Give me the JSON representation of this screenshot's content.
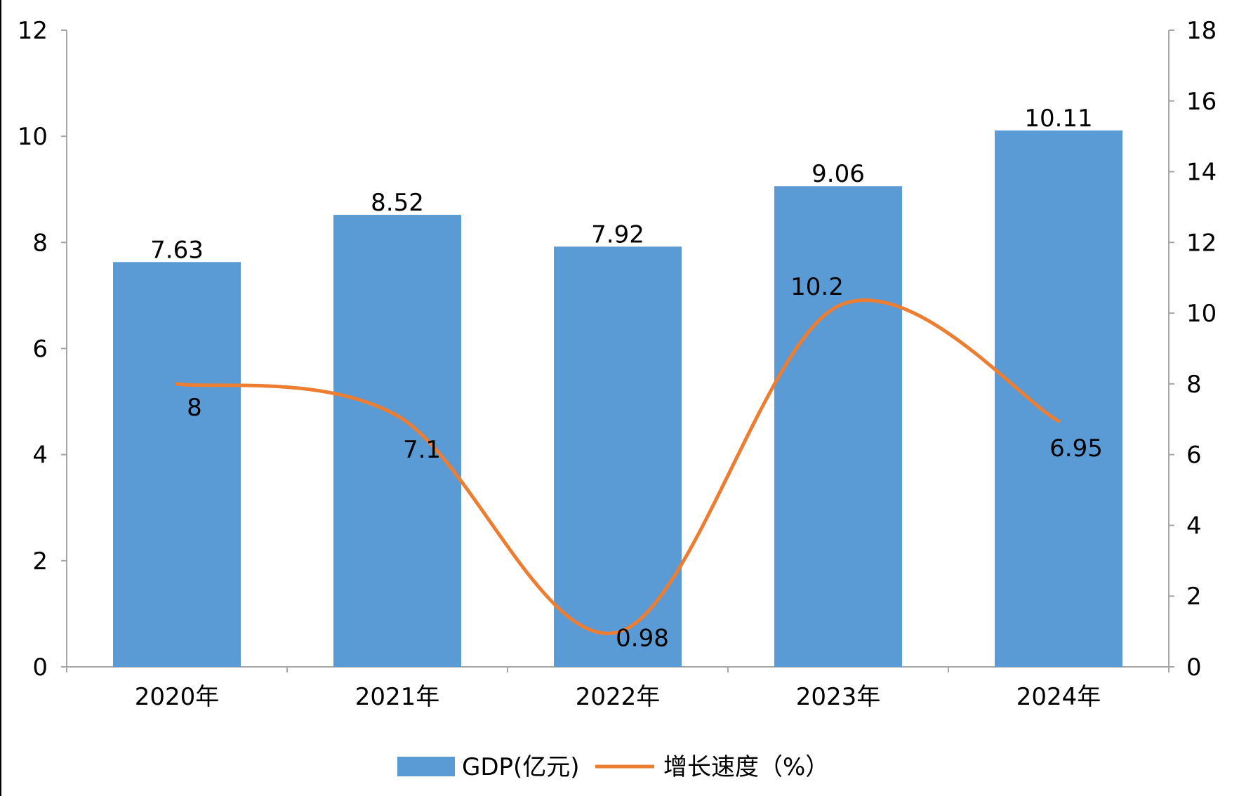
{
  "chart_data": {
    "type": "bar",
    "categories": [
      "2020年",
      "2021年",
      "2022年",
      "2023年",
      "2024年"
    ],
    "series": [
      {
        "name": "GDP(亿元)",
        "type": "bar",
        "axis": "left",
        "color": "#5b9bd5",
        "values": [
          7.63,
          8.52,
          7.92,
          9.06,
          10.11
        ],
        "labels": [
          "7.63",
          "8.52",
          "7.92",
          "9.06",
          "10.11"
        ]
      },
      {
        "name": "增长速度（%）",
        "type": "line",
        "axis": "right",
        "color": "#ed7d31",
        "smooth": true,
        "values": [
          8,
          7.1,
          0.98,
          10.2,
          6.95
        ],
        "labels": [
          "8",
          "7.1",
          "0.98",
          "10.2",
          "6.95"
        ]
      }
    ],
    "y_left": {
      "min": 0,
      "max": 12,
      "ticks": [
        "0",
        "2",
        "4",
        "6",
        "8",
        "10",
        "12"
      ]
    },
    "y_right": {
      "min": 0,
      "max": 18,
      "ticks": [
        "0",
        "2",
        "4",
        "6",
        "8",
        "10",
        "12",
        "14",
        "16",
        "18"
      ]
    },
    "grid": false,
    "legend": "bottom"
  }
}
